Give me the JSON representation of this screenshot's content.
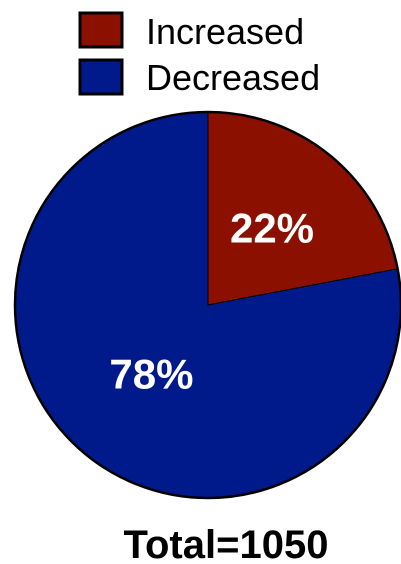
{
  "chart_data": {
    "type": "pie",
    "categories": [
      "Increased",
      "Decreased"
    ],
    "values": [
      22,
      78
    ],
    "value_labels": [
      "22%",
      "78%"
    ],
    "colors": [
      "#8b1000",
      "#001a8c"
    ],
    "legend": [
      "Increased",
      "Decreased"
    ],
    "legend_position": "top",
    "start": "12 o'clock, clockwise",
    "total_label": "Total=1050"
  }
}
